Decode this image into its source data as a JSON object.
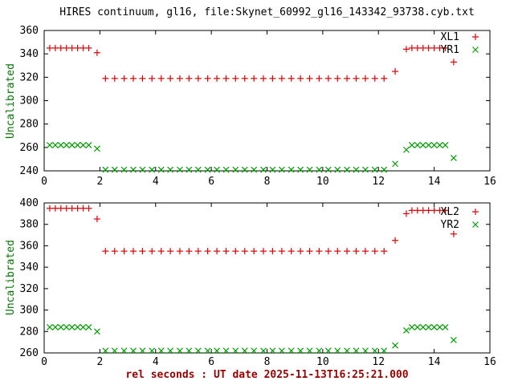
{
  "title": "HIRES continuum, gl16, file:Skynet_60992_gl16_143342_93738.cyb.txt",
  "xlabel": "rel seconds : UT date 2025-11-13T16:25:21.000",
  "colors": {
    "red": "#e00000",
    "green": "#00a000",
    "ylabel": "#007700",
    "xlabel": "#990000",
    "frame": "#000000"
  },
  "chart_data": [
    {
      "type": "scatter",
      "ylabel": "Uncalibrated",
      "xlim": [
        0,
        16
      ],
      "ylim": [
        240,
        360
      ],
      "xticks": [
        0,
        2,
        4,
        6,
        8,
        10,
        12,
        14,
        16
      ],
      "yticks": [
        240,
        260,
        280,
        300,
        320,
        340,
        360
      ],
      "legend_position": "top-right",
      "x": [
        0.2,
        0.4,
        0.6,
        0.8,
        1,
        1.2,
        1.4,
        1.6,
        1.9,
        2.2,
        2.53,
        2.87,
        3.2,
        3.53,
        3.87,
        4.2,
        4.53,
        4.87,
        5.2,
        5.53,
        5.87,
        6.2,
        6.53,
        6.87,
        7.2,
        7.53,
        7.87,
        8.2,
        8.53,
        8.87,
        9.2,
        9.53,
        9.87,
        10.2,
        10.53,
        10.87,
        11.2,
        11.53,
        11.87,
        12.2,
        12.6,
        13,
        13.2,
        13.4,
        13.6,
        13.8,
        14,
        14.2,
        14.4,
        14.7
      ],
      "series": [
        {
          "name": "XL1",
          "marker": "plus",
          "color": "#e00000",
          "y": [
            345,
            345,
            345,
            345,
            345,
            345,
            345,
            345,
            341,
            319,
            319,
            319,
            319,
            319,
            319,
            319,
            319,
            319,
            319,
            319,
            319,
            319,
            319,
            319,
            319,
            319,
            319,
            319,
            319,
            319,
            319,
            319,
            319,
            319,
            319,
            319,
            319,
            319,
            319,
            319,
            325,
            344,
            345,
            345,
            345,
            345,
            345,
            345,
            345,
            333
          ]
        },
        {
          "name": "YR1",
          "marker": "cross",
          "color": "#00a000",
          "y": [
            262,
            262,
            262,
            262,
            262,
            262,
            262,
            262,
            259,
            241,
            241,
            241,
            241,
            241,
            241,
            241,
            241,
            241,
            241,
            241,
            241,
            241,
            241,
            241,
            241,
            241,
            241,
            241,
            241,
            241,
            241,
            241,
            241,
            241,
            241,
            241,
            241,
            241,
            241,
            241,
            246,
            258,
            262,
            262,
            262,
            262,
            262,
            262,
            262,
            251
          ]
        }
      ]
    },
    {
      "type": "scatter",
      "ylabel": "Uncalibrated",
      "xlim": [
        0,
        16
      ],
      "ylim": [
        260,
        400
      ],
      "xticks": [
        0,
        2,
        4,
        6,
        8,
        10,
        12,
        14,
        16
      ],
      "yticks": [
        260,
        280,
        300,
        320,
        340,
        360,
        380,
        400
      ],
      "legend_position": "top-right",
      "x": [
        0.2,
        0.4,
        0.6,
        0.8,
        1,
        1.2,
        1.4,
        1.6,
        1.9,
        2.2,
        2.53,
        2.87,
        3.2,
        3.53,
        3.87,
        4.2,
        4.53,
        4.87,
        5.2,
        5.53,
        5.87,
        6.2,
        6.53,
        6.87,
        7.2,
        7.53,
        7.87,
        8.2,
        8.53,
        8.87,
        9.2,
        9.53,
        9.87,
        10.2,
        10.53,
        10.87,
        11.2,
        11.53,
        11.87,
        12.2,
        12.6,
        13,
        13.2,
        13.4,
        13.6,
        13.8,
        14,
        14.2,
        14.4,
        14.7
      ],
      "series": [
        {
          "name": "XL2",
          "marker": "plus",
          "color": "#e00000",
          "y": [
            395,
            395,
            395,
            395,
            395,
            395,
            395,
            395,
            385,
            355,
            355,
            355,
            355,
            355,
            355,
            355,
            355,
            355,
            355,
            355,
            355,
            355,
            355,
            355,
            355,
            355,
            355,
            355,
            355,
            355,
            355,
            355,
            355,
            355,
            355,
            355,
            355,
            355,
            355,
            355,
            365,
            390,
            393,
            393,
            393,
            393,
            393,
            393,
            393,
            371
          ]
        },
        {
          "name": "YR2",
          "marker": "cross",
          "color": "#00a000",
          "y": [
            284,
            284,
            284,
            284,
            284,
            284,
            284,
            284,
            280,
            262,
            262,
            262,
            262,
            262,
            262,
            262,
            262,
            262,
            262,
            262,
            262,
            262,
            262,
            262,
            262,
            262,
            262,
            262,
            262,
            262,
            262,
            262,
            262,
            262,
            262,
            262,
            262,
            262,
            262,
            262,
            267,
            281,
            284,
            284,
            284,
            284,
            284,
            284,
            284,
            272
          ]
        }
      ]
    }
  ]
}
